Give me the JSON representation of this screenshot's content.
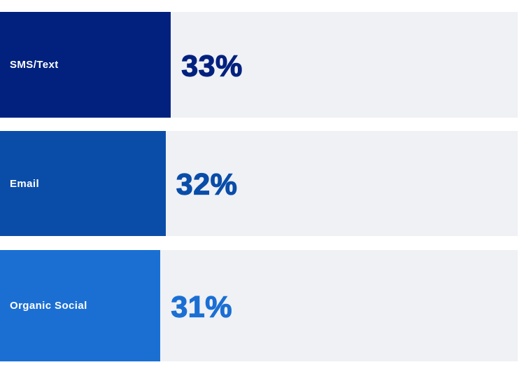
{
  "chart_data": {
    "type": "bar",
    "orientation": "horizontal",
    "categories": [
      "SMS/Text",
      "Email",
      "Organic Social"
    ],
    "values": [
      33,
      32,
      31
    ],
    "unit": "%",
    "value_labels": [
      "33%",
      "32%",
      "31%"
    ],
    "bar_colors": [
      "#02217F",
      "#0A4DA9",
      "#1B6FD3"
    ],
    "track_color": "#EFF1F5",
    "label_text_color": "#FFFFFF",
    "xlim": [
      0,
      100
    ],
    "legend": "none",
    "grid": "off",
    "value_label_position": "right-of-bar"
  }
}
